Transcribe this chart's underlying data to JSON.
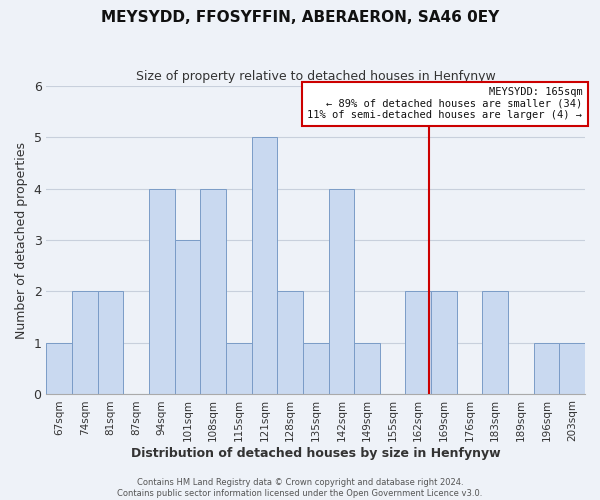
{
  "title": "MEYSYDD, FFOSYFFIN, ABERAERON, SA46 0EY",
  "subtitle": "Size of property relative to detached houses in Henfynyw",
  "xlabel": "Distribution of detached houses by size in Henfynyw",
  "ylabel": "Number of detached properties",
  "bar_labels": [
    "67sqm",
    "74sqm",
    "81sqm",
    "87sqm",
    "94sqm",
    "101sqm",
    "108sqm",
    "115sqm",
    "121sqm",
    "128sqm",
    "135sqm",
    "142sqm",
    "149sqm",
    "155sqm",
    "162sqm",
    "169sqm",
    "176sqm",
    "183sqm",
    "189sqm",
    "196sqm",
    "203sqm"
  ],
  "bar_values": [
    1,
    2,
    2,
    0,
    4,
    3,
    4,
    1,
    5,
    2,
    1,
    4,
    1,
    0,
    2,
    2,
    0,
    2,
    0,
    1,
    1
  ],
  "bar_color": "#c9d9f0",
  "bar_edge_color": "#7a9cc7",
  "grid_color": "#c8d0dc",
  "background_color": "#eef2f8",
  "ylim": [
    0,
    6
  ],
  "yticks": [
    0,
    1,
    2,
    3,
    4,
    5,
    6
  ],
  "property_line_color": "#cc0000",
  "annotation_title": "MEYSYDD: 165sqm",
  "annotation_line1": "← 89% of detached houses are smaller (34)",
  "annotation_line2": "11% of semi-detached houses are larger (4) →",
  "annotation_box_color": "#cc0000",
  "footer_line1": "Contains HM Land Registry data © Crown copyright and database right 2024.",
  "footer_line2": "Contains public sector information licensed under the Open Government Licence v3.0."
}
